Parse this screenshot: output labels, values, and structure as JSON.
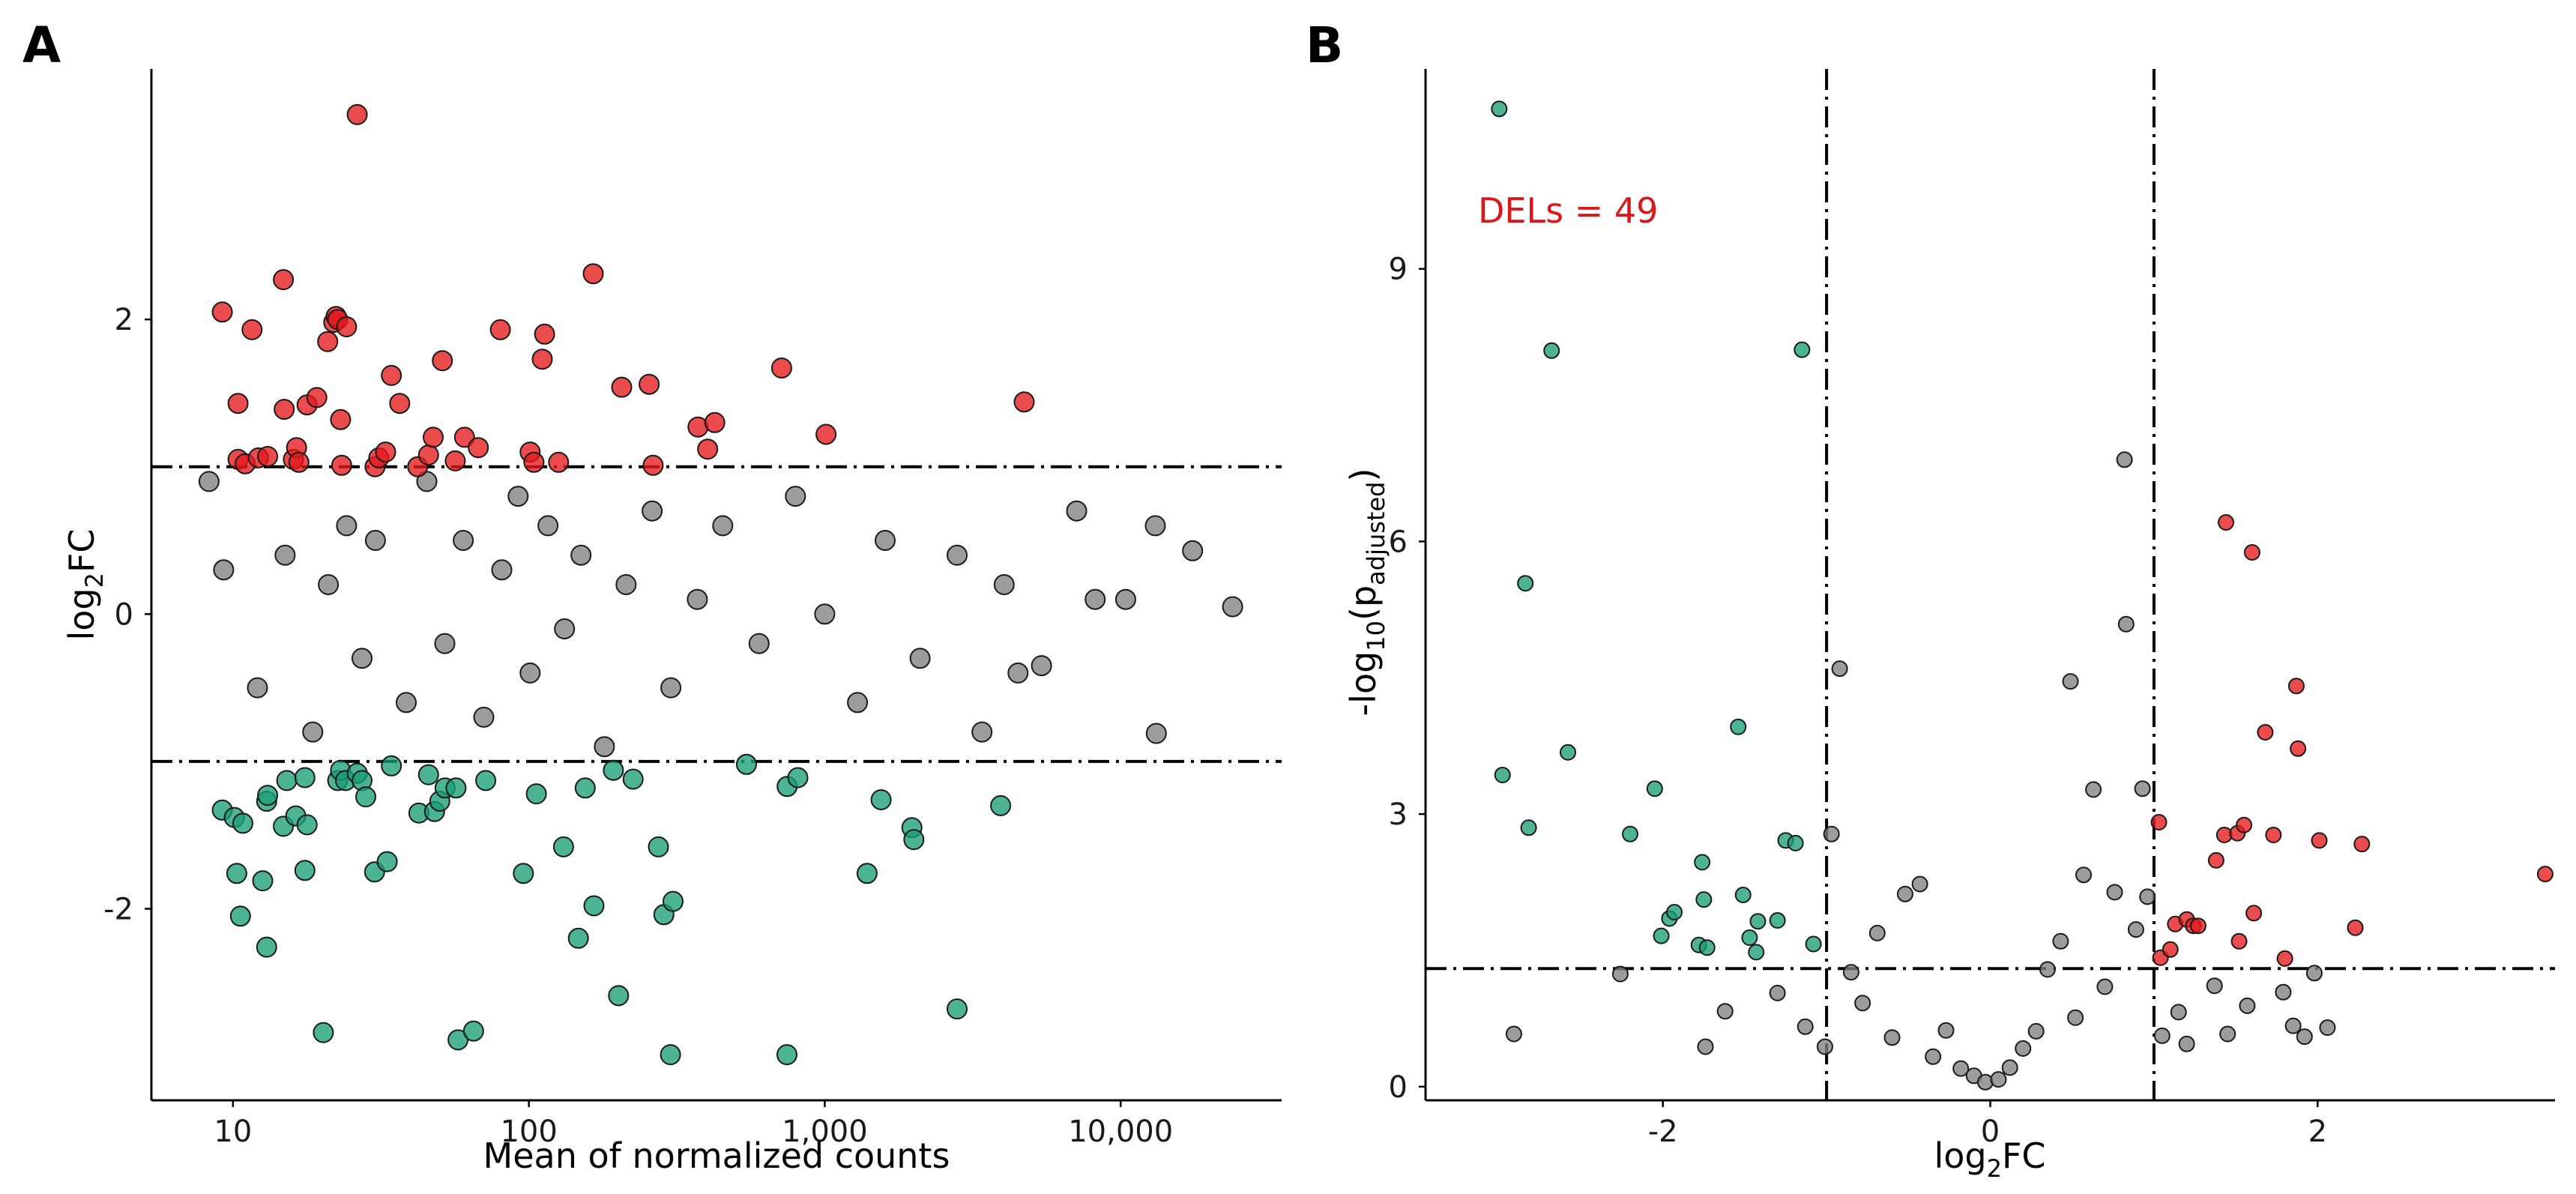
{
  "colors": {
    "ns": "#808080",
    "up": "#e41a1c",
    "down": "#1b9e77",
    "annotation": "#d7191c"
  },
  "chart_data": [
    {
      "panel": "A",
      "type": "scatter",
      "title": "",
      "xlabel": "Mean of normalized counts",
      "ylabel": "log2FC",
      "xscale": "log10",
      "xlim": [
        5.3,
        35000
      ],
      "ylim": [
        -3.3,
        3.7
      ],
      "xticks": [
        10,
        100,
        1000,
        10000
      ],
      "xtick_labels": [
        "10",
        "100",
        "1,000",
        "10,000"
      ],
      "yticks": [
        -2,
        0,
        2
      ],
      "ytick_labels": [
        "-2",
        "0",
        "2"
      ],
      "reference_lines": {
        "y": [
          -1,
          1
        ]
      },
      "grid": false,
      "series": [
        {
          "name": "up",
          "points": [
            [
              9.2,
              2.05
            ],
            [
              10.4,
              1.43
            ],
            [
              10.4,
              1.05
            ],
            [
              11,
              1.02
            ],
            [
              11.6,
              1.93
            ],
            [
              12.2,
              1.06
            ],
            [
              13.1,
              1.07
            ],
            [
              14.8,
              2.27
            ],
            [
              14.9,
              1.39
            ],
            [
              16,
              1.05
            ],
            [
              16.4,
              1.13
            ],
            [
              16.7,
              1.03
            ],
            [
              17.8,
              1.42
            ],
            [
              19.2,
              1.47
            ],
            [
              20.9,
              1.85
            ],
            [
              21.9,
              1.98
            ],
            [
              22.3,
              2.02
            ],
            [
              22.6,
              2.0
            ],
            [
              23.1,
              1.32
            ],
            [
              23.3,
              1.01
            ],
            [
              24.2,
              1.95
            ],
            [
              26.3,
              3.39
            ],
            [
              30.2,
              1.0
            ],
            [
              31.1,
              1.06
            ],
            [
              32.8,
              1.1
            ],
            [
              34.3,
              1.62
            ],
            [
              36.6,
              1.43
            ],
            [
              42.1,
              1.0
            ],
            [
              45.8,
              1.08
            ],
            [
              47.5,
              1.2
            ],
            [
              51,
              1.72
            ],
            [
              56.4,
              1.04
            ],
            [
              60.6,
              1.2
            ],
            [
              67.5,
              1.13
            ],
            [
              80.1,
              1.93
            ],
            [
              101,
              1.1
            ],
            [
              104,
              1.03
            ],
            [
              111,
              1.73
            ],
            [
              113,
              1.9
            ],
            [
              126,
              1.03
            ],
            [
              165,
              2.31
            ],
            [
              206,
              1.54
            ],
            [
              255,
              1.56
            ],
            [
              263,
              1.01
            ],
            [
              373,
              1.27
            ],
            [
              402,
              1.12
            ],
            [
              425,
              1.3
            ],
            [
              715,
              1.67
            ],
            [
              1010,
              1.22
            ],
            [
              4720,
              1.44
            ]
          ]
        },
        {
          "name": "down",
          "points": [
            [
              9.2,
              -1.33
            ],
            [
              10.1,
              -1.38
            ],
            [
              10.3,
              -1.76
            ],
            [
              10.6,
              -2.05
            ],
            [
              10.8,
              -1.42
            ],
            [
              12.6,
              -1.81
            ],
            [
              13,
              -2.26
            ],
            [
              13,
              -1.27
            ],
            [
              13.1,
              -1.23
            ],
            [
              14.8,
              -1.44
            ],
            [
              15.2,
              -1.13
            ],
            [
              16.3,
              -1.37
            ],
            [
              17.5,
              -1.11
            ],
            [
              17.5,
              -1.74
            ],
            [
              17.8,
              -1.43
            ],
            [
              20.2,
              -2.84
            ],
            [
              22.6,
              -1.13
            ],
            [
              23.1,
              -1.06
            ],
            [
              24,
              -1.13
            ],
            [
              26.3,
              -1.08
            ],
            [
              27.3,
              -1.13
            ],
            [
              28.1,
              -1.24
            ],
            [
              30.1,
              -1.75
            ],
            [
              33.2,
              -1.68
            ],
            [
              34.3,
              -1.03
            ],
            [
              42.5,
              -1.35
            ],
            [
              45.8,
              -1.09
            ],
            [
              48,
              -1.34
            ],
            [
              50,
              -1.27
            ],
            [
              52.1,
              -1.18
            ],
            [
              56.7,
              -1.18
            ],
            [
              57.6,
              -2.89
            ],
            [
              65,
              -2.83
            ],
            [
              71.5,
              -1.13
            ],
            [
              95.8,
              -1.76
            ],
            [
              106,
              -1.22
            ],
            [
              131,
              -1.58
            ],
            [
              147,
              -2.2
            ],
            [
              155,
              -1.18
            ],
            [
              166,
              -1.98
            ],
            [
              193,
              -1.06
            ],
            [
              201,
              -2.59
            ],
            [
              225,
              -1.12
            ],
            [
              274,
              -1.58
            ],
            [
              286,
              -2.04
            ],
            [
              301,
              -2.99
            ],
            [
              307,
              -1.95
            ],
            [
              544,
              -1.02
            ],
            [
              745,
              -2.99
            ],
            [
              746,
              -1.17
            ],
            [
              811,
              -1.11
            ],
            [
              1390,
              -1.76
            ],
            [
              1550,
              -1.26
            ],
            [
              1970,
              -1.45
            ],
            [
              2000,
              -1.53
            ],
            [
              2800,
              -2.68
            ],
            [
              3930,
              -1.3
            ]
          ]
        },
        {
          "name": "ns",
          "points": [
            [
              8.3,
              0.9
            ],
            [
              9.3,
              0.3
            ],
            [
              12.1,
              -0.5
            ],
            [
              15,
              0.4
            ],
            [
              18.6,
              -0.8
            ],
            [
              21,
              0.2
            ],
            [
              24.2,
              0.6
            ],
            [
              27.3,
              -0.3
            ],
            [
              30.3,
              0.5
            ],
            [
              38.5,
              -0.6
            ],
            [
              45.2,
              0.9
            ],
            [
              52,
              -0.2
            ],
            [
              60,
              0.5
            ],
            [
              70.4,
              -0.7
            ],
            [
              81,
              0.3
            ],
            [
              92,
              0.8
            ],
            [
              101,
              -0.4
            ],
            [
              116,
              0.6
            ],
            [
              132,
              -0.1
            ],
            [
              150,
              0.4
            ],
            [
              180,
              -0.9
            ],
            [
              213,
              0.2
            ],
            [
              261,
              0.7
            ],
            [
              302,
              -0.5
            ],
            [
              371,
              0.1
            ],
            [
              452,
              0.6
            ],
            [
              600,
              -0.2
            ],
            [
              796,
              0.8
            ],
            [
              1000,
              0.0
            ],
            [
              1290,
              -0.6
            ],
            [
              1600,
              0.5
            ],
            [
              2100,
              -0.3
            ],
            [
              2800,
              0.4
            ],
            [
              3400,
              -0.8
            ],
            [
              4040,
              0.2
            ],
            [
              4500,
              -0.4
            ],
            [
              5400,
              -0.35
            ],
            [
              7100,
              0.7
            ],
            [
              8200,
              0.1
            ],
            [
              10400,
              0.1
            ],
            [
              13100,
              0.6
            ],
            [
              13200,
              -0.81
            ],
            [
              17500,
              0.43
            ],
            [
              23900,
              0.05
            ]
          ]
        }
      ]
    },
    {
      "panel": "B",
      "type": "scatter",
      "title": "",
      "xlabel": "log2FC",
      "ylabel": "-log10(padjusted)",
      "xlim": [
        -3.45,
        3.45
      ],
      "ylim": [
        -0.15,
        11.2
      ],
      "xticks": [
        -2,
        0,
        2
      ],
      "xtick_labels": [
        "-2",
        "0",
        "2"
      ],
      "yticks": [
        0,
        3,
        6,
        9
      ],
      "ytick_labels": [
        "0",
        "3",
        "6",
        "9"
      ],
      "reference_lines": {
        "x": [
          -1,
          1
        ],
        "y": [
          1.3
        ]
      },
      "grid": false,
      "annotation": "DELs = 49",
      "series": [
        {
          "name": "up",
          "points": [
            [
              1.03,
              2.91
            ],
            [
              1.04,
              1.42
            ],
            [
              1.1,
              1.51
            ],
            [
              1.13,
              1.79
            ],
            [
              1.2,
              1.84
            ],
            [
              1.24,
              1.77
            ],
            [
              1.27,
              1.77
            ],
            [
              1.38,
              2.49
            ],
            [
              1.43,
              2.77
            ],
            [
              1.44,
              6.21
            ],
            [
              1.51,
              2.79
            ],
            [
              1.52,
              1.6
            ],
            [
              1.55,
              2.88
            ],
            [
              1.6,
              5.88
            ],
            [
              1.61,
              1.91
            ],
            [
              1.68,
              3.9
            ],
            [
              1.73,
              2.77
            ],
            [
              1.8,
              1.41
            ],
            [
              1.87,
              4.41
            ],
            [
              1.88,
              3.72
            ],
            [
              2.01,
              2.71
            ],
            [
              2.23,
              1.75
            ],
            [
              2.27,
              2.67
            ],
            [
              3.39,
              2.34
            ]
          ]
        },
        {
          "name": "down",
          "points": [
            [
              -3.0,
              10.76
            ],
            [
              -2.98,
              3.43
            ],
            [
              -2.84,
              5.54
            ],
            [
              -2.82,
              2.85
            ],
            [
              -2.68,
              8.1
            ],
            [
              -2.58,
              3.68
            ],
            [
              -2.2,
              2.78
            ],
            [
              -2.05,
              3.28
            ],
            [
              -2.01,
              1.66
            ],
            [
              -1.96,
              1.85
            ],
            [
              -1.93,
              1.92
            ],
            [
              -1.78,
              1.56
            ],
            [
              -1.76,
              2.47
            ],
            [
              -1.75,
              2.06
            ],
            [
              -1.73,
              1.53
            ],
            [
              -1.54,
              3.96
            ],
            [
              -1.51,
              2.11
            ],
            [
              -1.47,
              1.64
            ],
            [
              -1.43,
              1.48
            ],
            [
              -1.42,
              1.82
            ],
            [
              -1.3,
              1.83
            ],
            [
              -1.25,
              2.71
            ],
            [
              -1.19,
              2.68
            ],
            [
              -1.15,
              8.11
            ],
            [
              -1.08,
              1.57
            ]
          ]
        },
        {
          "name": "ns",
          "points": [
            [
              -2.91,
              0.58
            ],
            [
              -2.26,
              1.24
            ],
            [
              -1.74,
              0.44
            ],
            [
              -1.62,
              0.83
            ],
            [
              -1.3,
              1.03
            ],
            [
              -1.13,
              0.66
            ],
            [
              -1.01,
              0.44
            ],
            [
              -0.97,
              2.78
            ],
            [
              -0.92,
              4.6
            ],
            [
              -0.85,
              1.26
            ],
            [
              -0.78,
              0.92
            ],
            [
              -0.69,
              1.69
            ],
            [
              -0.6,
              0.54
            ],
            [
              -0.52,
              2.12
            ],
            [
              -0.43,
              2.23
            ],
            [
              -0.35,
              0.33
            ],
            [
              -0.27,
              0.62
            ],
            [
              -0.18,
              0.2
            ],
            [
              -0.1,
              0.12
            ],
            [
              -0.03,
              0.05
            ],
            [
              0.05,
              0.08
            ],
            [
              0.12,
              0.21
            ],
            [
              0.2,
              0.42
            ],
            [
              0.28,
              0.61
            ],
            [
              0.35,
              1.29
            ],
            [
              0.43,
              1.6
            ],
            [
              0.49,
              4.46
            ],
            [
              0.52,
              0.76
            ],
            [
              0.57,
              2.33
            ],
            [
              0.63,
              3.27
            ],
            [
              0.7,
              1.1
            ],
            [
              0.76,
              2.14
            ],
            [
              0.82,
              6.9
            ],
            [
              0.83,
              5.09
            ],
            [
              0.89,
              1.73
            ],
            [
              0.93,
              3.28
            ],
            [
              0.96,
              2.09
            ],
            [
              1.05,
              0.56
            ],
            [
              1.15,
              0.82
            ],
            [
              1.2,
              0.47
            ],
            [
              1.37,
              1.11
            ],
            [
              1.45,
              0.58
            ],
            [
              1.57,
              0.89
            ],
            [
              1.79,
              1.04
            ],
            [
              1.85,
              0.67
            ],
            [
              1.92,
              0.55
            ],
            [
              1.98,
              1.25
            ],
            [
              2.06,
              0.65
            ]
          ]
        }
      ]
    }
  ]
}
